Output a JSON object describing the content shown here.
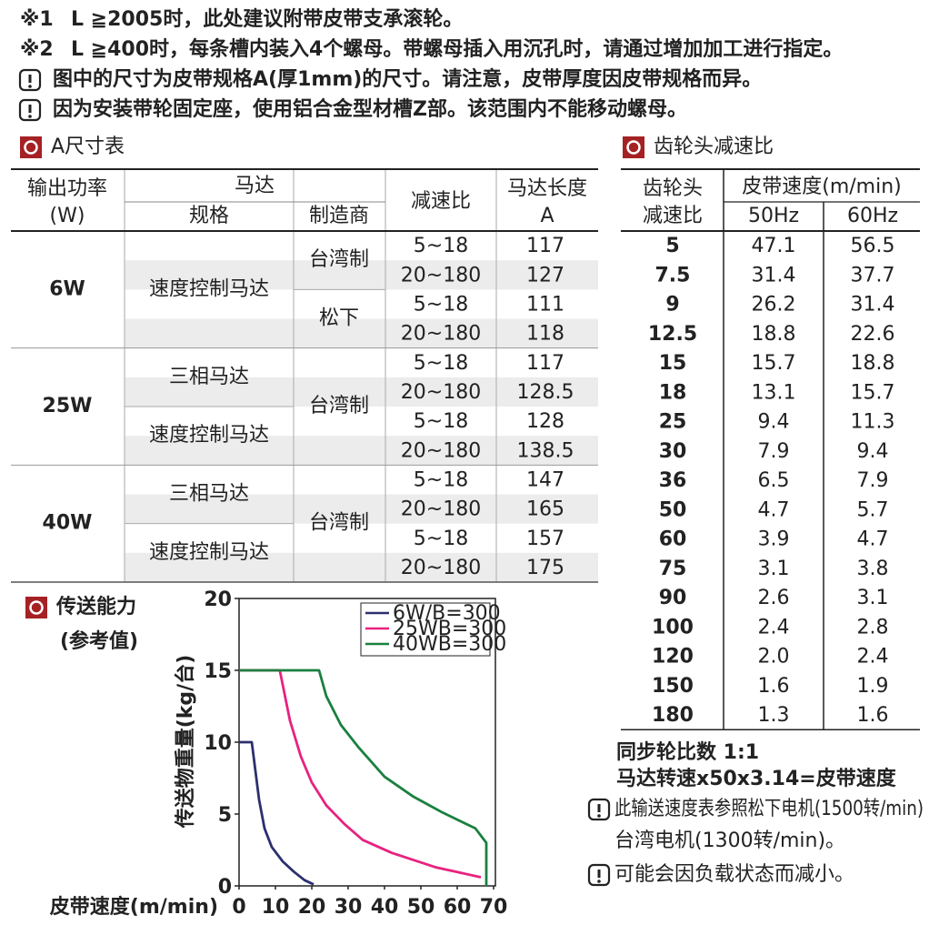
{
  "notes": [
    {
      "marker": "※1",
      "text": "L ≧2005时，此处建议附带皮带支承滚轮。"
    },
    {
      "marker": "※2",
      "text": "L ≧400时，每条槽内装入4个螺母。带螺母插入用沉孔时，请通过增加加工进行指定。"
    },
    {
      "text": "图中的尺寸为皮带规格A(厚1mm)的尺寸。请注意，皮带厚度因皮带规格而异。"
    },
    {
      "text": "因为安装带轮固定座，使用铝合金型材槽Z部。该范围内不能移动螺母。"
    }
  ],
  "table_a": {
    "title": "A尺寸表",
    "headers": {
      "power": [
        "输出功率",
        "(W)"
      ],
      "motor": "马达",
      "spec": "规格",
      "maker": "制造商",
      "ratio": "减速比",
      "length": [
        "马达长度",
        "A"
      ]
    },
    "groups": [
      {
        "power": "6W",
        "specs": [
          "速度控制马达"
        ],
        "makers": [
          "台湾制",
          "松下"
        ],
        "rows": [
          {
            "ratio": "5~18",
            "length": 117
          },
          {
            "ratio": "20~180",
            "length": 127
          },
          {
            "ratio": "5~18",
            "length": 111
          },
          {
            "ratio": "20~180",
            "length": 118
          }
        ]
      },
      {
        "power": "25W",
        "specs": [
          "三相马达",
          "速度控制马达"
        ],
        "makers": [
          "台湾制"
        ],
        "rows": [
          {
            "ratio": "5~18",
            "length": 117
          },
          {
            "ratio": "20~180",
            "length": 128.5
          },
          {
            "ratio": "5~18",
            "length": 128
          },
          {
            "ratio": "20~180",
            "length": 138.5
          }
        ]
      },
      {
        "power": "40W",
        "specs": [
          "三相马达",
          "速度控制马达"
        ],
        "makers": [
          "台湾制"
        ],
        "rows": [
          {
            "ratio": "5~18",
            "length": 147
          },
          {
            "ratio": "20~180",
            "length": 165
          },
          {
            "ratio": "5~18",
            "length": 157
          },
          {
            "ratio": "20~180",
            "length": 175
          }
        ]
      }
    ]
  },
  "gear_table": {
    "title": "齿轮头减速比",
    "headers": {
      "ratio": [
        "齿轮头",
        "减速比"
      ],
      "speed": "皮带速度(m/min)",
      "hz": [
        "50Hz",
        "60Hz"
      ]
    },
    "rows": [
      [
        "5",
        "47.1",
        "56.5"
      ],
      [
        "7.5",
        "31.4",
        "37.7"
      ],
      [
        "9",
        "26.2",
        "31.4"
      ],
      [
        "12.5",
        "18.8",
        "22.6"
      ],
      [
        "15",
        "15.7",
        "18.8"
      ],
      [
        "18",
        "13.1",
        "15.7"
      ],
      [
        "25",
        "9.4",
        "11.3"
      ],
      [
        "30",
        "7.9",
        "9.4"
      ],
      [
        "36",
        "6.5",
        "7.9"
      ],
      [
        "50",
        "4.7",
        "5.7"
      ],
      [
        "60",
        "3.9",
        "4.7"
      ],
      [
        "75",
        "3.1",
        "3.8"
      ],
      [
        "90",
        "2.6",
        "3.1"
      ],
      [
        "100",
        "2.4",
        "2.8"
      ],
      [
        "120",
        "2.0",
        "2.4"
      ],
      [
        "150",
        "1.6",
        "1.9"
      ],
      [
        "180",
        "1.3",
        "1.6"
      ]
    ]
  },
  "gear_notes": {
    "lines": [
      "同步轮比数 1:1",
      "马达转速x50x3.14=皮带速度"
    ],
    "notes": [
      [
        "此输送速度表参照松下电机(1500转/min)",
        "台湾电机(1300转/min)。"
      ],
      [
        "可能会因负载状态而减小。"
      ]
    ]
  },
  "chart_data": {
    "type": "line",
    "title": "传送能力",
    "subtitle": "(参考值)",
    "xlabel": "皮带速度(m/min)",
    "ylabel": "传送物重量(kg/台)",
    "xlim": [
      0,
      70
    ],
    "ylim": [
      0,
      20
    ],
    "xticks": [
      0,
      10,
      20,
      30,
      40,
      50,
      60,
      70
    ],
    "yticks": [
      0,
      5,
      10,
      15,
      20
    ],
    "legend": "upper right",
    "series": [
      {
        "name": "6W/B=300",
        "color": "#2b2f6e",
        "x": [
          0,
          3.5,
          4.5,
          5.5,
          7,
          9,
          12,
          15,
          18,
          20.5
        ],
        "values": [
          10,
          10,
          8,
          6,
          4,
          2.7,
          1.7,
          1,
          0.4,
          0.1
        ]
      },
      {
        "name": "25WB=300",
        "color": "#e8227f",
        "x": [
          0,
          11.2,
          14,
          17,
          20,
          24,
          29,
          34,
          42,
          54,
          66.5
        ],
        "values": [
          15,
          15,
          11.5,
          9,
          7.2,
          5.6,
          4.3,
          3.2,
          2.3,
          1.3,
          0.6
        ]
      },
      {
        "name": "40WB=300",
        "color": "#1a8040",
        "x": [
          0,
          22,
          24,
          28,
          33,
          40,
          48,
          56,
          65,
          68,
          68
        ],
        "values": [
          15,
          15,
          13.2,
          11.2,
          9.6,
          7.6,
          6.2,
          5.1,
          4,
          3,
          0
        ]
      }
    ]
  }
}
